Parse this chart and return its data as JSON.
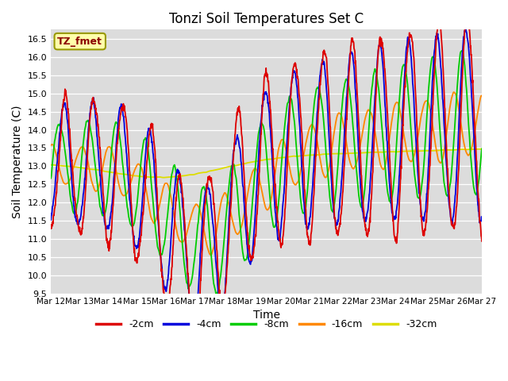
{
  "title": "Tonzi Soil Temperatures Set C",
  "xlabel": "Time",
  "ylabel": "Soil Temperature (C)",
  "ylim": [
    9.5,
    16.75
  ],
  "yticks": [
    9.5,
    10.0,
    10.5,
    11.0,
    11.5,
    12.0,
    12.5,
    13.0,
    13.5,
    14.0,
    14.5,
    15.0,
    15.5,
    16.0,
    16.5
  ],
  "bg_color": "#dcdcdc",
  "legend_label": "TZ_fmet",
  "series_labels": [
    "-2cm",
    "-4cm",
    "-8cm",
    "-16cm",
    "-32cm"
  ],
  "series_colors": [
    "#dd0000",
    "#0000dd",
    "#00cc00",
    "#ff8800",
    "#dddd00"
  ],
  "x_dates": [
    "Mar 12",
    "Mar 13",
    "Mar 14",
    "Mar 15",
    "Mar 16",
    "Mar 17",
    "Mar 18",
    "Mar 19",
    "Mar 20",
    "Mar 21",
    "Mar 22",
    "Mar 23",
    "Mar 24",
    "Mar 25",
    "Mar 26",
    "Mar 27"
  ],
  "n_days": 15,
  "figsize": [
    6.4,
    4.8
  ],
  "dpi": 100
}
